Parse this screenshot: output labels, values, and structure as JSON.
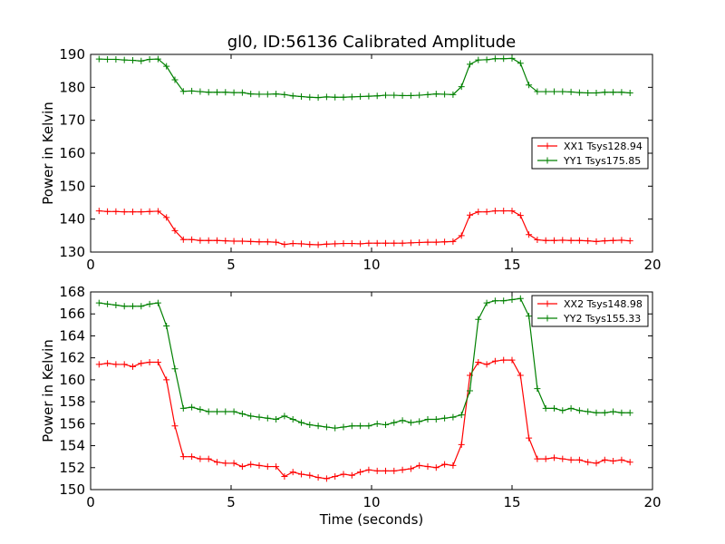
{
  "chart_data": [
    {
      "type": "line",
      "title": "gl0, ID:56136 Calibrated Amplitude",
      "xlabel": "",
      "ylabel": "Power in Kelvin",
      "xlim": [
        0,
        20
      ],
      "ylim": [
        130,
        190
      ],
      "xticks": [
        "0",
        "5",
        "10",
        "15",
        "20"
      ],
      "yticks": [
        "130",
        "140",
        "150",
        "160",
        "170",
        "180",
        "190"
      ],
      "x": [
        0.3,
        0.6,
        0.9,
        1.2,
        1.5,
        1.8,
        2.1,
        2.4,
        2.7,
        3.0,
        3.3,
        3.6,
        3.9,
        4.2,
        4.5,
        4.8,
        5.1,
        5.4,
        5.7,
        6.0,
        6.3,
        6.6,
        6.9,
        7.2,
        7.5,
        7.8,
        8.1,
        8.4,
        8.7,
        9.0,
        9.3,
        9.6,
        9.9,
        10.2,
        10.5,
        10.8,
        11.1,
        11.4,
        11.7,
        12.0,
        12.3,
        12.6,
        12.9,
        13.2,
        13.5,
        13.8,
        14.1,
        14.4,
        14.7,
        15.0,
        15.3,
        15.6,
        15.9,
        16.2,
        16.5,
        16.8,
        17.1,
        17.4,
        17.7,
        18.0,
        18.3,
        18.6,
        18.9,
        19.2
      ],
      "series": [
        {
          "name": "XX1 Tsys128.94",
          "color": "#ff0000",
          "values": [
            142.5,
            142.3,
            142.3,
            142.2,
            142.2,
            142.2,
            142.3,
            142.4,
            140.5,
            136.5,
            133.8,
            133.8,
            133.5,
            133.5,
            133.5,
            133.4,
            133.3,
            133.3,
            133.2,
            133.1,
            133.1,
            133.0,
            132.3,
            132.6,
            132.5,
            132.3,
            132.2,
            132.4,
            132.5,
            132.6,
            132.6,
            132.5,
            132.7,
            132.7,
            132.7,
            132.7,
            132.7,
            132.8,
            132.9,
            133.0,
            133.0,
            133.1,
            133.2,
            135.0,
            141.2,
            142.2,
            142.2,
            142.5,
            142.5,
            142.5,
            141.1,
            135.3,
            133.7,
            133.5,
            133.5,
            133.6,
            133.5,
            133.5,
            133.4,
            133.2,
            133.4,
            133.5,
            133.6,
            133.4
          ]
        },
        {
          "name": "YY1 Tsys175.85",
          "color": "#008000",
          "values": [
            188.6,
            188.5,
            188.5,
            188.3,
            188.2,
            188.0,
            188.5,
            188.6,
            186.4,
            182.3,
            178.8,
            178.9,
            178.7,
            178.5,
            178.5,
            178.5,
            178.4,
            178.4,
            178.0,
            177.9,
            177.9,
            178.0,
            177.8,
            177.4,
            177.2,
            177.0,
            176.9,
            177.1,
            177.0,
            177.0,
            177.1,
            177.2,
            177.3,
            177.4,
            177.6,
            177.6,
            177.5,
            177.5,
            177.6,
            177.8,
            178.0,
            177.9,
            177.8,
            180.2,
            187.0,
            188.3,
            188.4,
            188.7,
            188.7,
            188.8,
            187.3,
            180.7,
            178.7,
            178.7,
            178.7,
            178.7,
            178.6,
            178.4,
            178.3,
            178.3,
            178.5,
            178.5,
            178.5,
            178.3
          ]
        }
      ],
      "legend": "center-right"
    },
    {
      "type": "line",
      "title": "",
      "xlabel": "Time (seconds)",
      "ylabel": "Power in Kelvin",
      "xlim": [
        0,
        20
      ],
      "ylim": [
        150,
        168
      ],
      "xticks": [
        "0",
        "5",
        "10",
        "15",
        "20"
      ],
      "yticks": [
        "150",
        "152",
        "154",
        "156",
        "158",
        "160",
        "162",
        "164",
        "166",
        "168"
      ],
      "x": [
        0.3,
        0.6,
        0.9,
        1.2,
        1.5,
        1.8,
        2.1,
        2.4,
        2.7,
        3.0,
        3.3,
        3.6,
        3.9,
        4.2,
        4.5,
        4.8,
        5.1,
        5.4,
        5.7,
        6.0,
        6.3,
        6.6,
        6.9,
        7.2,
        7.5,
        7.8,
        8.1,
        8.4,
        8.7,
        9.0,
        9.3,
        9.6,
        9.9,
        10.2,
        10.5,
        10.8,
        11.1,
        11.4,
        11.7,
        12.0,
        12.3,
        12.6,
        12.9,
        13.2,
        13.5,
        13.8,
        14.1,
        14.4,
        14.7,
        15.0,
        15.3,
        15.6,
        15.9,
        16.2,
        16.5,
        16.8,
        17.1,
        17.4,
        17.7,
        18.0,
        18.3,
        18.6,
        18.9,
        19.2
      ],
      "series": [
        {
          "name": "XX2 Tsys148.98",
          "color": "#ff0000",
          "values": [
            161.4,
            161.5,
            161.4,
            161.4,
            161.2,
            161.5,
            161.6,
            161.6,
            160.0,
            155.8,
            153.0,
            153.0,
            152.8,
            152.8,
            152.5,
            152.4,
            152.4,
            152.1,
            152.3,
            152.2,
            152.1,
            152.1,
            151.2,
            151.6,
            151.4,
            151.3,
            151.1,
            151.0,
            151.2,
            151.4,
            151.3,
            151.6,
            151.8,
            151.7,
            151.7,
            151.7,
            151.8,
            151.9,
            152.2,
            152.1,
            152.0,
            152.3,
            152.2,
            154.1,
            160.4,
            161.6,
            161.4,
            161.7,
            161.8,
            161.8,
            160.4,
            154.7,
            152.8,
            152.8,
            152.9,
            152.8,
            152.7,
            152.7,
            152.5,
            152.4,
            152.7,
            152.6,
            152.7,
            152.5
          ]
        },
        {
          "name": "YY2 Tsys155.33",
          "color": "#008000",
          "values": [
            167.0,
            166.9,
            166.8,
            166.7,
            166.7,
            166.7,
            166.9,
            167.0,
            164.9,
            161.0,
            157.4,
            157.5,
            157.3,
            157.1,
            157.1,
            157.1,
            157.1,
            156.9,
            156.7,
            156.6,
            156.5,
            156.4,
            156.7,
            156.4,
            156.1,
            155.9,
            155.8,
            155.7,
            155.6,
            155.7,
            155.8,
            155.8,
            155.8,
            156.0,
            155.9,
            156.1,
            156.3,
            156.1,
            156.2,
            156.4,
            156.4,
            156.5,
            156.6,
            156.8,
            159.0,
            165.5,
            167.0,
            167.2,
            167.2,
            167.3,
            167.4,
            165.8,
            159.2,
            157.4,
            157.4,
            157.2,
            157.4,
            157.2,
            157.1,
            157.0,
            157.0,
            157.1,
            157.0,
            157.0
          ]
        }
      ],
      "legend": "top-right"
    }
  ]
}
